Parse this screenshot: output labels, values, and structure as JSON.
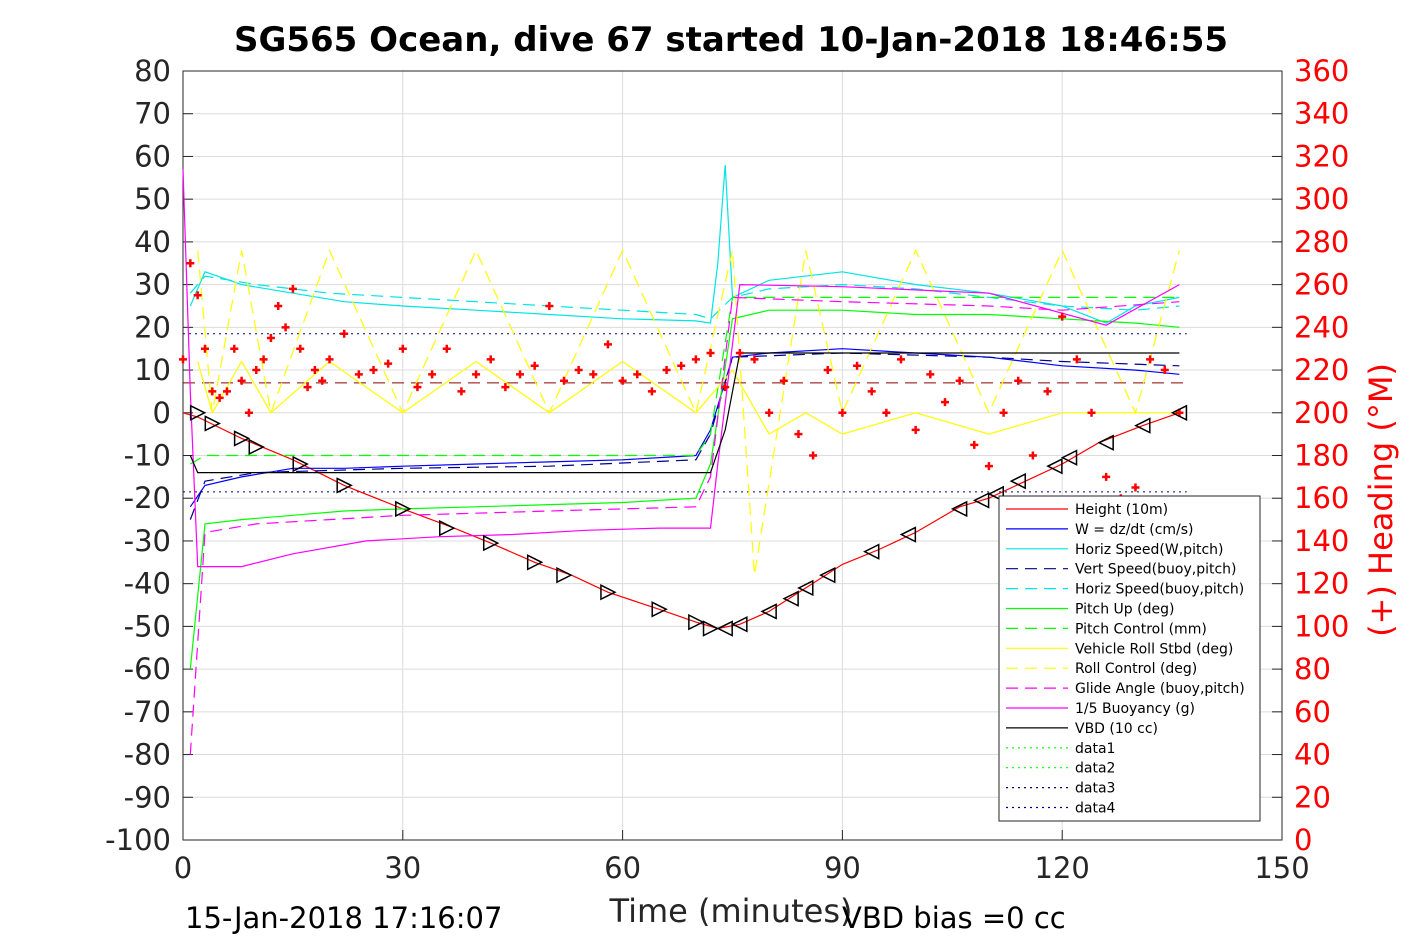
{
  "chart_data": {
    "type": "line",
    "title": "SG565 Ocean, dive 67 started 10-Jan-2018 18:46:55",
    "xlabel": "Time (minutes)",
    "ylabel_right": "(+) Heading (°M)",
    "xlim": [
      0,
      150
    ],
    "ylim": [
      -100,
      80
    ],
    "ylim_right": [
      0,
      360
    ],
    "x_ticks": [
      "0",
      "30",
      "60",
      "90",
      "120",
      "150"
    ],
    "y_ticks": [
      "80",
      "70",
      "60",
      "50",
      "40",
      "30",
      "20",
      "10",
      "0",
      "-10",
      "-20",
      "-30",
      "-40",
      "-50",
      "-60",
      "-70",
      "-80",
      "-90",
      "-100"
    ],
    "y_right_ticks": [
      "360",
      "340",
      "320",
      "300",
      "280",
      "260",
      "240",
      "220",
      "200",
      "180",
      "160",
      "140",
      "120",
      "100",
      "80",
      "60",
      "40",
      "20",
      "0"
    ],
    "grid": true,
    "legend_position": "bottom-right",
    "footer_left": "15-Jan-2018 17:16:07",
    "footer_right": "VBD bias =0 cc",
    "legend": [
      {
        "label": "Height (10m)",
        "color": "#ff0000",
        "dash": "solid"
      },
      {
        "label": "W = dz/dt (cm/s)",
        "color": "#0000ff",
        "dash": "solid"
      },
      {
        "label": "Horiz Speed(W,pitch)",
        "color": "#00e5e5",
        "dash": "solid"
      },
      {
        "label": "Vert Speed(buoy,pitch)",
        "color": "#00008b",
        "dash": "dashed"
      },
      {
        "label": "Horiz Speed(buoy,pitch)",
        "color": "#00e5e5",
        "dash": "dashed"
      },
      {
        "label": "Pitch Up (deg)",
        "color": "#00ff00",
        "dash": "solid"
      },
      {
        "label": "Pitch Control (mm)",
        "color": "#00ff00",
        "dash": "dashed"
      },
      {
        "label": "Vehicle Roll Stbd (deg)",
        "color": "#ffff00",
        "dash": "solid"
      },
      {
        "label": "Roll Control (deg)",
        "color": "#ffff00",
        "dash": "dashed"
      },
      {
        "label": "Glide Angle (buoy,pitch)",
        "color": "#ff00ff",
        "dash": "dashed"
      },
      {
        "label": "1/5 Buoyancy (g)",
        "color": "#ff00ff",
        "dash": "solid"
      },
      {
        "label": "VBD (10 cc)",
        "color": "#000000",
        "dash": "solid"
      },
      {
        "label": "data1",
        "color": "#00ff00",
        "dash": "dotted"
      },
      {
        "label": "data2",
        "color": "#00ff00",
        "dash": "dotted"
      },
      {
        "label": "data3",
        "color": "#000080",
        "dash": "dotted"
      },
      {
        "label": "data4",
        "color": "#000080",
        "dash": "dotted"
      }
    ],
    "series": [
      {
        "key": "height",
        "x": [
          0,
          2,
          8,
          15,
          22,
          30,
          37,
          42,
          48,
          53,
          58,
          65,
          70,
          73,
          76,
          80,
          85,
          90,
          95,
          100,
          106,
          110,
          115,
          120,
          125,
          131,
          136
        ],
        "y": [
          0,
          -1,
          -6,
          -11,
          -17,
          -22.5,
          -27,
          -30.5,
          -35,
          -38,
          -42,
          -46,
          -49,
          -50.5,
          -49.5,
          -46.5,
          -41,
          -35.5,
          -32,
          -28,
          -22,
          -20,
          -16,
          -12,
          -7,
          -3,
          0
        ]
      },
      {
        "key": "w",
        "x": [
          1,
          3,
          8,
          15,
          22,
          30,
          40,
          50,
          60,
          70,
          72,
          75,
          80,
          90,
          100,
          110,
          120,
          130,
          136
        ],
        "y": [
          -22,
          -17,
          -15,
          -13,
          -13,
          -12.5,
          -12,
          -11.5,
          -11,
          -10,
          -4,
          13,
          14,
          15,
          14,
          13,
          11,
          10,
          9
        ]
      },
      {
        "key": "horiz_speed_w",
        "x": [
          1,
          3,
          8,
          15,
          22,
          30,
          40,
          50,
          60,
          70,
          72,
          73,
          74,
          75,
          80,
          90,
          100,
          110,
          120,
          126,
          130,
          136
        ],
        "y": [
          25,
          33,
          30,
          28,
          26,
          25,
          24,
          23,
          22,
          21.5,
          21,
          35,
          58,
          27,
          31,
          33,
          30,
          28,
          25,
          21,
          25,
          27
        ]
      },
      {
        "key": "vert_speed_buoy",
        "x": [
          1,
          3,
          10,
          30,
          50,
          70,
          72,
          75,
          90,
          110,
          120,
          136
        ],
        "y": [
          -25,
          -16,
          -14,
          -13,
          -12.5,
          -11,
          -5,
          13,
          14,
          13,
          12,
          11
        ]
      },
      {
        "key": "horiz_speed_buoy",
        "x": [
          1,
          3,
          10,
          20,
          30,
          40,
          50,
          60,
          70,
          72,
          75,
          80,
          90,
          100,
          110,
          120,
          130,
          136
        ],
        "y": [
          28,
          32,
          30,
          28,
          27,
          26,
          25,
          24,
          23,
          22,
          27,
          29,
          30,
          29,
          27,
          25,
          24,
          25
        ]
      },
      {
        "key": "pitch_up",
        "x": [
          1,
          3,
          8,
          15,
          22,
          30,
          40,
          50,
          60,
          70,
          72,
          75,
          80,
          90,
          100,
          110,
          120,
          130,
          136
        ],
        "y": [
          -60,
          -26,
          -25,
          -24,
          -23,
          -22.5,
          -22,
          -21.5,
          -21,
          -20,
          -12,
          22,
          24,
          24,
          23,
          23,
          22,
          21,
          20
        ]
      },
      {
        "key": "pitch_control",
        "x": [
          1,
          3,
          10,
          30,
          50,
          70,
          72,
          75,
          90,
          110,
          136
        ],
        "y": [
          -12,
          -10,
          -10,
          -10,
          -10,
          -10,
          -5,
          27,
          27,
          27,
          27
        ]
      },
      {
        "key": "vehicle_roll",
        "x": [
          2,
          4,
          8,
          12,
          20,
          30,
          40,
          50,
          60,
          70,
          75,
          80,
          85,
          90,
          100,
          110,
          120,
          130,
          136
        ],
        "y": [
          12,
          0,
          12,
          0,
          12,
          0,
          12,
          0,
          12,
          0,
          10,
          -5,
          0,
          -5,
          0,
          -5,
          0,
          0,
          0
        ]
      },
      {
        "key": "roll_control",
        "x": [
          2,
          4,
          8,
          12,
          20,
          30,
          40,
          50,
          60,
          70,
          75,
          78,
          85,
          90,
          100,
          110,
          120,
          130,
          136
        ],
        "y": [
          38,
          0,
          38,
          0,
          38,
          0,
          38,
          0,
          38,
          0,
          38,
          -38,
          38,
          0,
          38,
          0,
          38,
          0,
          38
        ]
      },
      {
        "key": "glide_angle",
        "x": [
          1,
          3,
          10,
          20,
          30,
          40,
          50,
          60,
          70,
          72,
          75,
          90,
          110,
          120,
          136
        ],
        "y": [
          -80,
          -28,
          -26,
          -25,
          -24,
          -23.5,
          -23,
          -22.5,
          -22,
          -15,
          27,
          26,
          25,
          24,
          26
        ]
      },
      {
        "key": "buoyancy",
        "x": [
          0,
          1,
          2,
          8,
          15,
          25,
          35,
          45,
          55,
          65,
          72,
          73,
          76,
          90,
          110,
          126,
          136
        ],
        "y": [
          57,
          5,
          -36,
          -36,
          -33,
          -30,
          -29,
          -28.5,
          -27.5,
          -27,
          -27,
          -12,
          30,
          29.5,
          28,
          20.5,
          30
        ]
      },
      {
        "key": "vbd",
        "x": [
          1,
          2,
          72,
          74,
          76,
          136
        ],
        "y": [
          -10,
          -14,
          -14,
          -4,
          14,
          14
        ]
      }
    ],
    "heading": {
      "x": [
        0,
        1,
        2,
        3,
        4,
        5,
        6,
        7,
        8,
        9,
        10,
        11,
        12,
        13,
        14,
        15,
        16,
        17,
        18,
        19,
        20,
        22,
        24,
        26,
        28,
        30,
        32,
        34,
        36,
        38,
        40,
        42,
        44,
        46,
        48,
        50,
        52,
        54,
        56,
        58,
        60,
        62,
        64,
        66,
        68,
        70,
        72,
        74,
        76,
        78,
        80,
        82,
        84,
        86,
        88,
        90,
        92,
        94,
        96,
        98,
        100,
        102,
        104,
        106,
        108,
        110,
        112,
        114,
        116,
        118,
        120,
        122,
        124,
        126,
        128,
        130,
        132,
        134,
        136
      ],
      "y": [
        225,
        270,
        255,
        230,
        210,
        207,
        210,
        230,
        215,
        200,
        220,
        225,
        235,
        250,
        240,
        258,
        230,
        212,
        220,
        215,
        225,
        237,
        218,
        220,
        223,
        230,
        212,
        218,
        230,
        210,
        218,
        225,
        212,
        218,
        222,
        250,
        215,
        220,
        218,
        232,
        215,
        218,
        210,
        220,
        222,
        225,
        228,
        212,
        228,
        225,
        200,
        215,
        190,
        180,
        220,
        200,
        222,
        210,
        200,
        225,
        192,
        218,
        205,
        215,
        185,
        175,
        200,
        215,
        180,
        210,
        245,
        225,
        200,
        170,
        160,
        165,
        225,
        220,
        200
      ]
    },
    "triangles": {
      "x": [
        2,
        4,
        8,
        10,
        16,
        22,
        30,
        36,
        42,
        48,
        52,
        58,
        65,
        70,
        72,
        74,
        76,
        80,
        83,
        85,
        88,
        94,
        99,
        106,
        109,
        111,
        114,
        119,
        121,
        126,
        131,
        136
      ],
      "y": [
        0,
        -2.5,
        -6,
        -8,
        -12,
        -17,
        -22.5,
        -27,
        -30.5,
        -35,
        -38,
        -42,
        -46,
        -49,
        -50.5,
        -50.5,
        -49.5,
        -46.5,
        -43.5,
        -41,
        -38,
        -32.5,
        -28.5,
        -22.5,
        -20.5,
        -19,
        -16,
        -12.5,
        -10.5,
        -7,
        -3,
        0
      ]
    },
    "reference_lines": [
      {
        "y": 18.5,
        "color": "#000080",
        "dash": "dotted"
      },
      {
        "y": -18.5,
        "color": "#000080",
        "dash": "dotted"
      },
      {
        "y": 7,
        "color": "#8b0000",
        "dash": "dashed"
      }
    ]
  }
}
